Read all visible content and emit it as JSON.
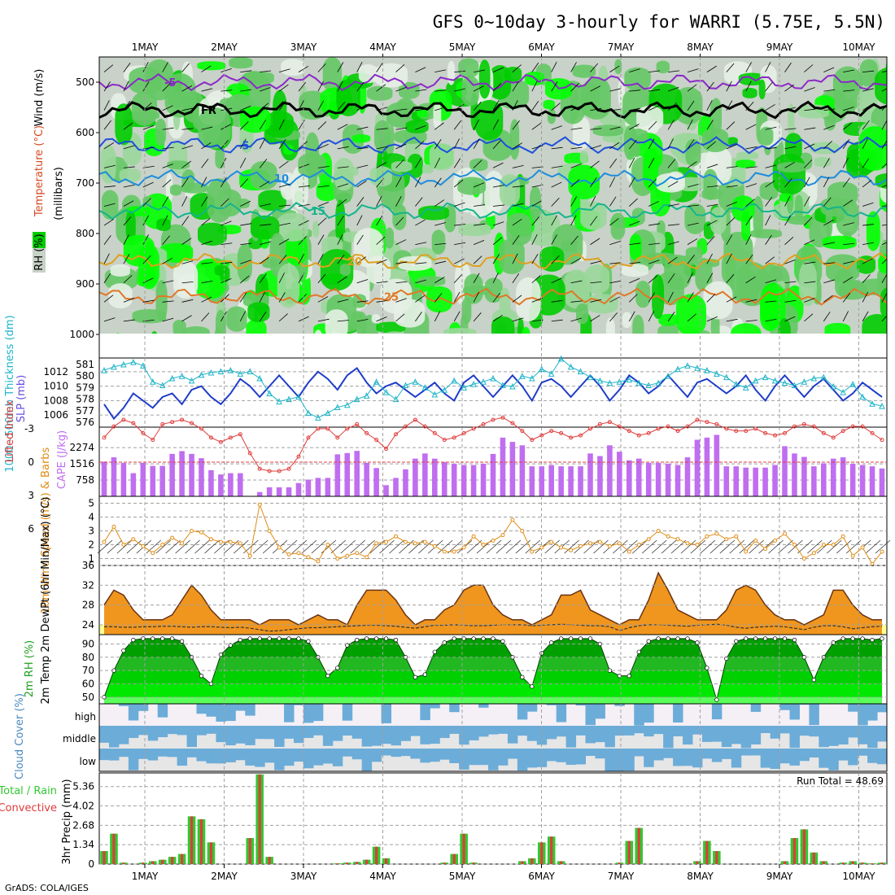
{
  "header": {
    "title": "GFS 0~10day 3-hourly for WARRI (5.75E, 5.5N)",
    "footer": "GrADS: COLA/IGES"
  },
  "colors": {
    "frame": "#000000",
    "grid": "#a0a0a0",
    "green_dark": "#00cc00",
    "green_bright": "#00ff00",
    "green_mid": "#64c864",
    "grey_green": "#c8d2c8",
    "pale_green": "#e6f0e6",
    "slp": "#1e3cc8",
    "thickness": "#1eb4c8",
    "lifted": "#e03c3c",
    "cape": "#c06ef0",
    "wind": "#e08c14",
    "temp_fill": "#f0961e",
    "temp_hot": "#f05a00",
    "temp_low": "#ffff96",
    "cloud": "#6cacd8",
    "cloud_bg": "#e6e6e6",
    "rain_total": "#32c832",
    "rain_conv": "#e03c3c"
  },
  "chart_data": [
    {
      "type": "heatmap",
      "panel": "upper-air",
      "title": "GFS 0~10day 3-hourly for WARRI (5.75E, 5.5N)",
      "legend_labels": [
        "RH (%)",
        "Temperature (°C)",
        "Wind (m/s)"
      ],
      "ylabel": "(millibars)",
      "y_ticks": [
        500,
        600,
        700,
        800,
        900,
        1000
      ],
      "ylim": [
        450,
        1000
      ],
      "x_ticks": [
        "1MAY",
        "2MAY",
        "3MAY",
        "4MAY",
        "5MAY",
        "6MAY",
        "7MAY",
        "8MAY",
        "9MAY",
        "10MAY"
      ],
      "contours": [
        {
          "label": "-5",
          "level_mb": 500,
          "color": "#8c28c8"
        },
        {
          "label": "FR",
          "level_mb": 555,
          "color": "#000000"
        },
        {
          "label": "-5",
          "level_mb": 625,
          "color": "#1e50dc"
        },
        {
          "label": "10",
          "level_mb": 690,
          "color": "#1e8cdc"
        },
        {
          "label": "15",
          "level_mb": 755,
          "color": "#14b48c"
        },
        {
          "label": "20",
          "level_mb": 855,
          "color": "#e0a01e"
        },
        {
          "label": "25",
          "level_mb": 925,
          "color": "#e07828"
        }
      ]
    },
    {
      "type": "line",
      "panel": "slp-thickness",
      "ylabel_left": "1000~500mb Thickness (dm)",
      "ylabel_right": "SLP (mb)",
      "left_ticks": [
        576,
        577,
        578,
        579,
        580,
        581
      ],
      "right_ticks": [
        1006,
        1008,
        1010,
        1012
      ],
      "series": [
        {
          "name": "SLP (mb)",
          "values": [
            1007.5,
            1005.5,
            1007.0,
            1009.0,
            1008.0,
            1007.0,
            1008.5,
            1009.0,
            1007.5,
            1009.5,
            1010.0,
            1008.5,
            1007.5,
            1009.0,
            1011.0,
            1010.0,
            1008.5,
            1010.0,
            1011.5,
            1010.0,
            1008.5,
            1010.5,
            1012.0,
            1011.0,
            1009.5,
            1011.5,
            1012.5,
            1010.5,
            1009.0,
            1010.0,
            1010.5,
            1009.5,
            1008.5,
            1009.5,
            1010.5,
            1009.0,
            1008.0,
            1010.5,
            1011.5,
            1010.0,
            1008.5,
            1010.0,
            1011.5,
            1010.0,
            1008.0,
            1010.5,
            1011.0,
            1010.0,
            1008.5,
            1010.0,
            1011.5,
            1010.0,
            1008.0,
            1009.5,
            1011.5,
            1010.5,
            1009.0,
            1010.0,
            1011.5,
            1010.0,
            1008.5,
            1010.5,
            1011.0,
            1010.0,
            1009.0,
            1010.0,
            1011.5,
            1009.5,
            1008.0,
            1010.0,
            1011.5,
            1010.0,
            1008.5,
            1010.0,
            1011.0,
            1009.5,
            1008.0,
            1009.0,
            1010.5,
            1009.5,
            1008.5
          ]
        },
        {
          "name": "1000~500mb Thickness (dm)",
          "values": [
            580.5,
            580.8,
            581.0,
            581.2,
            580.9,
            579.5,
            579.2,
            579.8,
            580.0,
            579.6,
            580.1,
            580.3,
            580.4,
            580.5,
            580.2,
            580.4,
            579.8,
            578.5,
            577.8,
            578.0,
            578.2,
            576.8,
            576.4,
            576.8,
            577.3,
            577.5,
            578.0,
            578.3,
            579.5,
            578.6,
            578.0,
            579.2,
            579.5,
            579.0,
            578.4,
            578.8,
            579.6,
            579.0,
            579.3,
            579.5,
            579.8,
            579.2,
            579.1,
            580.0,
            579.8,
            580.6,
            580.2,
            581.5,
            580.8,
            580.4,
            579.9,
            579.6,
            579.4,
            579.5,
            579.7,
            579.4,
            579.2,
            579.4,
            580.0,
            580.6,
            580.9,
            580.7,
            580.5,
            580.2,
            579.9,
            579.3,
            579.0,
            579.6,
            579.9,
            579.6,
            579.4,
            579.2,
            579.5,
            579.8,
            579.9,
            579.1,
            578.6,
            579.3,
            578.2,
            577.6,
            577.4
          ]
        }
      ]
    },
    {
      "type": "bar",
      "panel": "cape-lifted",
      "ylabel_left": "Lifted Index",
      "ylabel_right": "CAPE (J/kg)",
      "left_ticks": [
        -3,
        0,
        3,
        6
      ],
      "right_ticks": [
        758,
        1516,
        2274
      ],
      "series": [
        {
          "name": "CAPE (J/kg)",
          "values": [
            1620,
            1820,
            1560,
            1080,
            1560,
            1420,
            1420,
            1980,
            2110,
            1980,
            1780,
            1220,
            1020,
            1080,
            1080,
            0,
            200,
            420,
            420,
            420,
            620,
            780,
            860,
            860,
            1960,
            2020,
            2120,
            1560,
            1320,
            520,
            860,
            1260,
            1760,
            2000,
            1760,
            1600,
            1520,
            1460,
            1460,
            1520,
            1980,
            2740,
            2540,
            2380,
            1400,
            1400,
            1460,
            1400,
            1400,
            1400,
            2000,
            1880,
            2380,
            2080,
            1680,
            1760,
            1560,
            1560,
            1520,
            1460,
            1820,
            2640,
            2740,
            2870,
            1400,
            1400,
            1340,
            1340,
            1340,
            1460,
            2340,
            2000,
            1840,
            1400,
            1540,
            1760,
            1820,
            1520,
            1460,
            1400,
            1300
          ]
        },
        {
          "name": "Lifted Index",
          "values": [
            -2.2,
            -3.2,
            -3.8,
            -3.5,
            -2.6,
            -2.0,
            -3.4,
            -3.6,
            -3.8,
            -3.5,
            -3.0,
            -2.2,
            -1.8,
            -2.2,
            -2.5,
            -0.8,
            0.6,
            0.8,
            0.8,
            0.6,
            -0.5,
            -2.2,
            -3.0,
            -3.0,
            -2.2,
            -3.0,
            -3.4,
            -2.6,
            -2.0,
            -1.2,
            -2.5,
            -3.2,
            -3.8,
            -3.2,
            -2.6,
            -2.0,
            -2.2,
            -2.6,
            -3.0,
            -3.4,
            -3.8,
            -4.0,
            -3.5,
            -2.8,
            -2.0,
            -2.4,
            -2.8,
            -2.6,
            -2.2,
            -2.4,
            -3.0,
            -3.4,
            -3.6,
            -3.2,
            -2.8,
            -2.4,
            -2.6,
            -3.0,
            -3.2,
            -2.8,
            -3.2,
            -3.8,
            -3.6,
            -3.4,
            -3.0,
            -2.8,
            -2.8,
            -3.0,
            -2.6,
            -2.4,
            -2.6,
            -3.2,
            -3.4,
            -3.2,
            -2.6,
            -2.2,
            -2.8,
            -3.2,
            -3.2,
            -2.6,
            -2.0
          ]
        }
      ]
    },
    {
      "type": "line",
      "panel": "wind10m",
      "ylabel": "10m Wind Speed (m/s) & Barbs",
      "y_ticks": [
        1,
        2,
        3,
        4,
        5
      ],
      "ylim": [
        0.5,
        5.5
      ],
      "series": [
        {
          "name": "10m Wind Speed (m/s)",
          "values": [
            2.2,
            3.3,
            2.0,
            2.4,
            1.9,
            1.4,
            2.0,
            2.5,
            2.1,
            3.0,
            2.9,
            2.4,
            2.2,
            2.2,
            2.1,
            1.2,
            4.9,
            3.0,
            1.8,
            1.3,
            1.4,
            1.1,
            0.8,
            2.0,
            1.0,
            1.2,
            1.4,
            1.1,
            2.1,
            2.2,
            2.6,
            2.2,
            2.1,
            2.2,
            1.9,
            1.5,
            1.5,
            1.8,
            2.6,
            2.0,
            2.3,
            2.7,
            3.8,
            3.0,
            1.5,
            1.8,
            2.2,
            1.8,
            1.6,
            1.9,
            2.1,
            2.2,
            1.9,
            2.1,
            1.5,
            2.0,
            2.4,
            3.0,
            2.6,
            2.4,
            2.1,
            2.0,
            2.6,
            2.8,
            2.4,
            2.6,
            1.5,
            2.3,
            1.7,
            2.3,
            2.8,
            2.0,
            1.0,
            1.4,
            2.0,
            2.0,
            2.6,
            1.2,
            1.8,
            0.6,
            1.5
          ]
        }
      ]
    },
    {
      "type": "area",
      "panel": "temp2m",
      "ylabel": "2m Temp 2m DewPt (6hr Min/Max) (°C)",
      "y_ticks": [
        24,
        28,
        32,
        36
      ],
      "ylim": [
        22,
        36
      ],
      "series": [
        {
          "name": "2m Temp",
          "values": [
            28,
            31,
            30,
            27,
            25,
            25,
            25,
            26,
            29,
            32,
            30,
            27,
            25,
            25,
            25,
            25,
            24,
            25,
            25,
            25,
            24,
            25,
            26,
            25,
            25,
            24,
            28,
            31,
            31,
            31,
            29,
            26,
            24,
            25,
            25,
            27,
            28,
            31,
            32,
            32,
            28,
            26,
            25,
            25,
            24,
            25,
            26,
            30,
            30,
            31,
            27,
            26,
            25,
            24,
            25,
            25,
            29,
            34.5,
            31,
            27,
            26,
            25,
            25,
            25,
            27,
            31,
            32,
            31,
            28,
            26,
            25,
            25,
            24,
            25,
            26,
            31,
            31,
            28,
            26,
            25,
            25
          ]
        },
        {
          "name": "2m DewPt",
          "values": [
            23.6,
            23.6,
            23.5,
            23.5,
            23.6,
            23.6,
            23.7,
            23.7,
            23.6,
            23.5,
            23.6,
            23.6,
            23.5,
            23.4,
            23.5,
            23.3,
            23.0,
            22.7,
            22.8,
            23.0,
            23.2,
            23.4,
            23.4,
            23.5,
            23.6,
            23.7,
            23.8,
            23.9,
            23.9,
            23.8,
            23.7,
            23.5,
            23.3,
            23.6,
            23.9,
            23.9,
            24.0,
            23.9,
            23.8,
            23.8,
            23.9,
            24.0,
            24.0,
            24.0,
            23.8,
            23.9,
            24.0,
            24.1,
            24.0,
            23.9,
            23.8,
            23.8,
            23.6,
            22.8,
            23.4,
            23.8,
            24.0,
            24.0,
            23.9,
            23.8,
            23.7,
            23.9,
            24.0,
            24.1,
            23.9,
            23.5,
            23.3,
            23.5,
            23.6,
            23.7,
            23.6,
            23.3,
            23.0,
            23.5,
            23.8,
            23.8,
            23.6,
            23.2,
            23.4,
            23.6,
            23.7
          ]
        }
      ]
    },
    {
      "type": "area",
      "panel": "rh2m",
      "ylabel": "2m RH (%)",
      "y_ticks": [
        50,
        60,
        70,
        80,
        90
      ],
      "ylim": [
        45,
        97
      ],
      "series": [
        {
          "name": "2m RH (%)",
          "values": [
            50,
            70,
            85,
            93,
            94,
            94,
            94,
            94,
            92,
            80,
            66,
            60,
            82,
            89,
            93,
            94,
            94,
            94,
            94,
            94,
            94,
            92,
            80,
            66,
            72,
            89,
            93,
            94,
            94,
            94,
            93,
            80,
            65,
            67,
            84,
            91,
            94,
            94,
            94,
            94,
            94,
            92,
            80,
            65,
            58,
            83,
            91,
            94,
            94,
            94,
            94,
            90,
            70,
            66,
            66,
            84,
            92,
            94,
            94,
            94,
            94,
            91,
            72,
            48,
            79,
            92,
            94,
            94,
            94,
            94,
            94,
            93,
            80,
            63,
            80,
            91,
            94,
            94,
            94,
            93,
            94
          ]
        }
      ]
    },
    {
      "type": "bar",
      "panel": "cloud",
      "ylabel": "Cloud Cover (%)",
      "rows": [
        "high",
        "middle",
        "low"
      ]
    },
    {
      "type": "bar",
      "panel": "precip",
      "ylabel": "3hr Precip (mm)",
      "legend_labels": [
        "Total / Rain",
        "Convective"
      ],
      "annotation": "Run Total = 48.69",
      "y_ticks": [
        0,
        1.34,
        2.68,
        4.02,
        5.36
      ],
      "ylim": [
        0,
        6.3
      ],
      "x_ticks": [
        "1MAY",
        "2MAY",
        "3MAY",
        "4MAY",
        "5MAY",
        "6MAY",
        "7MAY",
        "8MAY",
        "9MAY",
        "10MAY"
      ],
      "series": [
        {
          "name": "Total / Rain",
          "values": [
            0.9,
            2.1,
            0.1,
            0,
            0.1,
            0.2,
            0.3,
            0.5,
            0.7,
            3.3,
            3.1,
            1.5,
            0,
            0,
            0,
            1.8,
            6.2,
            0.5,
            0,
            0,
            0,
            0,
            0,
            0,
            0.05,
            0.1,
            0.15,
            0.3,
            1.2,
            0.4,
            0,
            0,
            0,
            0,
            0,
            0.1,
            0.7,
            2.1,
            0.1,
            0,
            0,
            0,
            0,
            0.2,
            0.4,
            1.5,
            1.9,
            0.2,
            0,
            0,
            0,
            0,
            0,
            0.1,
            1.6,
            2.5,
            0,
            0,
            0,
            0,
            0,
            0.2,
            1.6,
            0.9,
            0,
            0,
            0,
            0,
            0,
            0,
            0.2,
            1.8,
            2.4,
            0.8,
            0.2,
            0,
            0.1,
            0.2,
            0.1,
            0.05,
            0.1
          ]
        }
      ]
    }
  ]
}
